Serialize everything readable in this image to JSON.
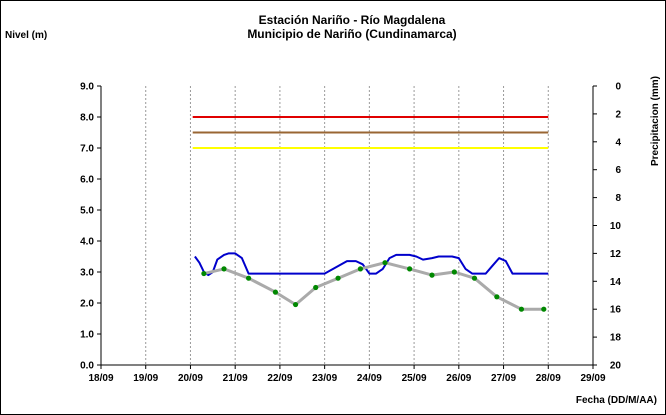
{
  "chart_data": {
    "type": "line",
    "title": "Estación Nariño  - Río Magdalena",
    "subtitle": "Municipio de Nariño (Cundinamarca)",
    "ylabel_left": "Nivel (m)",
    "ylabel_right": "Precipitacion (mm)",
    "xlabel": "Fecha (DD/M/AA)",
    "x_ticks": [
      "18/09",
      "19/09",
      "20/09",
      "21/09",
      "22/09",
      "23/09",
      "24/09",
      "25/09",
      "26/09",
      "27/09",
      "28/09",
      "29/09"
    ],
    "x_range": [
      0,
      11
    ],
    "y_left_ticks": [
      "0.0",
      "1.0",
      "2.0",
      "3.0",
      "4.0",
      "5.0",
      "6.0",
      "7.0",
      "8.0",
      "9.0"
    ],
    "y_left_range": [
      0,
      9
    ],
    "y_right_ticks": [
      "0",
      "2",
      "4",
      "6",
      "8",
      "10",
      "12",
      "14",
      "16",
      "18",
      "20"
    ],
    "y_right_range": [
      0,
      20
    ],
    "y_right_inverted": true,
    "grid": "vertical",
    "threshold_lines": [
      {
        "value": 8.0,
        "color": "#e00000",
        "x_range": [
          2.05,
          10.0
        ]
      },
      {
        "value": 7.5,
        "color": "#996633",
        "x_range": [
          2.05,
          10.0
        ]
      },
      {
        "value": 7.0,
        "color": "#ffff00",
        "x_range": [
          2.05,
          10.0
        ]
      }
    ],
    "series": [
      {
        "style": "blue-line",
        "color": "#0000cc",
        "x": [
          2.1,
          2.2,
          2.3,
          2.4,
          2.5,
          2.6,
          2.75,
          2.85,
          3.0,
          3.15,
          3.3,
          3.45,
          3.6,
          3.75,
          4.0,
          4.5,
          5.0,
          5.5,
          5.7,
          5.85,
          6.0,
          6.15,
          6.3,
          6.45,
          6.6,
          6.75,
          6.9,
          7.05,
          7.2,
          7.4,
          7.55,
          7.7,
          7.85,
          8.0,
          8.15,
          8.3,
          8.45,
          8.6,
          8.75,
          8.9,
          9.05,
          9.2,
          9.3,
          9.45,
          9.6,
          9.75,
          10.0
        ],
        "y": [
          3.5,
          3.3,
          3.0,
          2.9,
          3.0,
          3.4,
          3.55,
          3.6,
          3.6,
          3.45,
          2.95,
          2.95,
          2.95,
          2.95,
          2.95,
          2.95,
          2.95,
          3.35,
          3.35,
          3.25,
          2.95,
          2.95,
          3.1,
          3.45,
          3.55,
          3.55,
          3.55,
          3.5,
          3.4,
          3.45,
          3.5,
          3.5,
          3.5,
          3.45,
          3.1,
          2.95,
          2.95,
          2.95,
          3.2,
          3.45,
          3.35,
          2.95,
          2.95,
          2.95,
          2.95,
          2.95,
          2.95
        ]
      },
      {
        "style": "gray-line-with-green-points",
        "color": "#aaaaaa",
        "marker_color": "#008800",
        "x": [
          2.3,
          2.75,
          3.3,
          3.9,
          4.35,
          4.8,
          5.3,
          5.8,
          6.35,
          6.9,
          7.4,
          7.9,
          8.35,
          8.85,
          9.4,
          9.9
        ],
        "y": [
          2.95,
          3.1,
          2.8,
          2.35,
          1.95,
          2.5,
          2.8,
          3.1,
          3.3,
          3.1,
          2.9,
          3.0,
          2.8,
          2.2,
          1.8,
          1.8
        ]
      }
    ]
  }
}
